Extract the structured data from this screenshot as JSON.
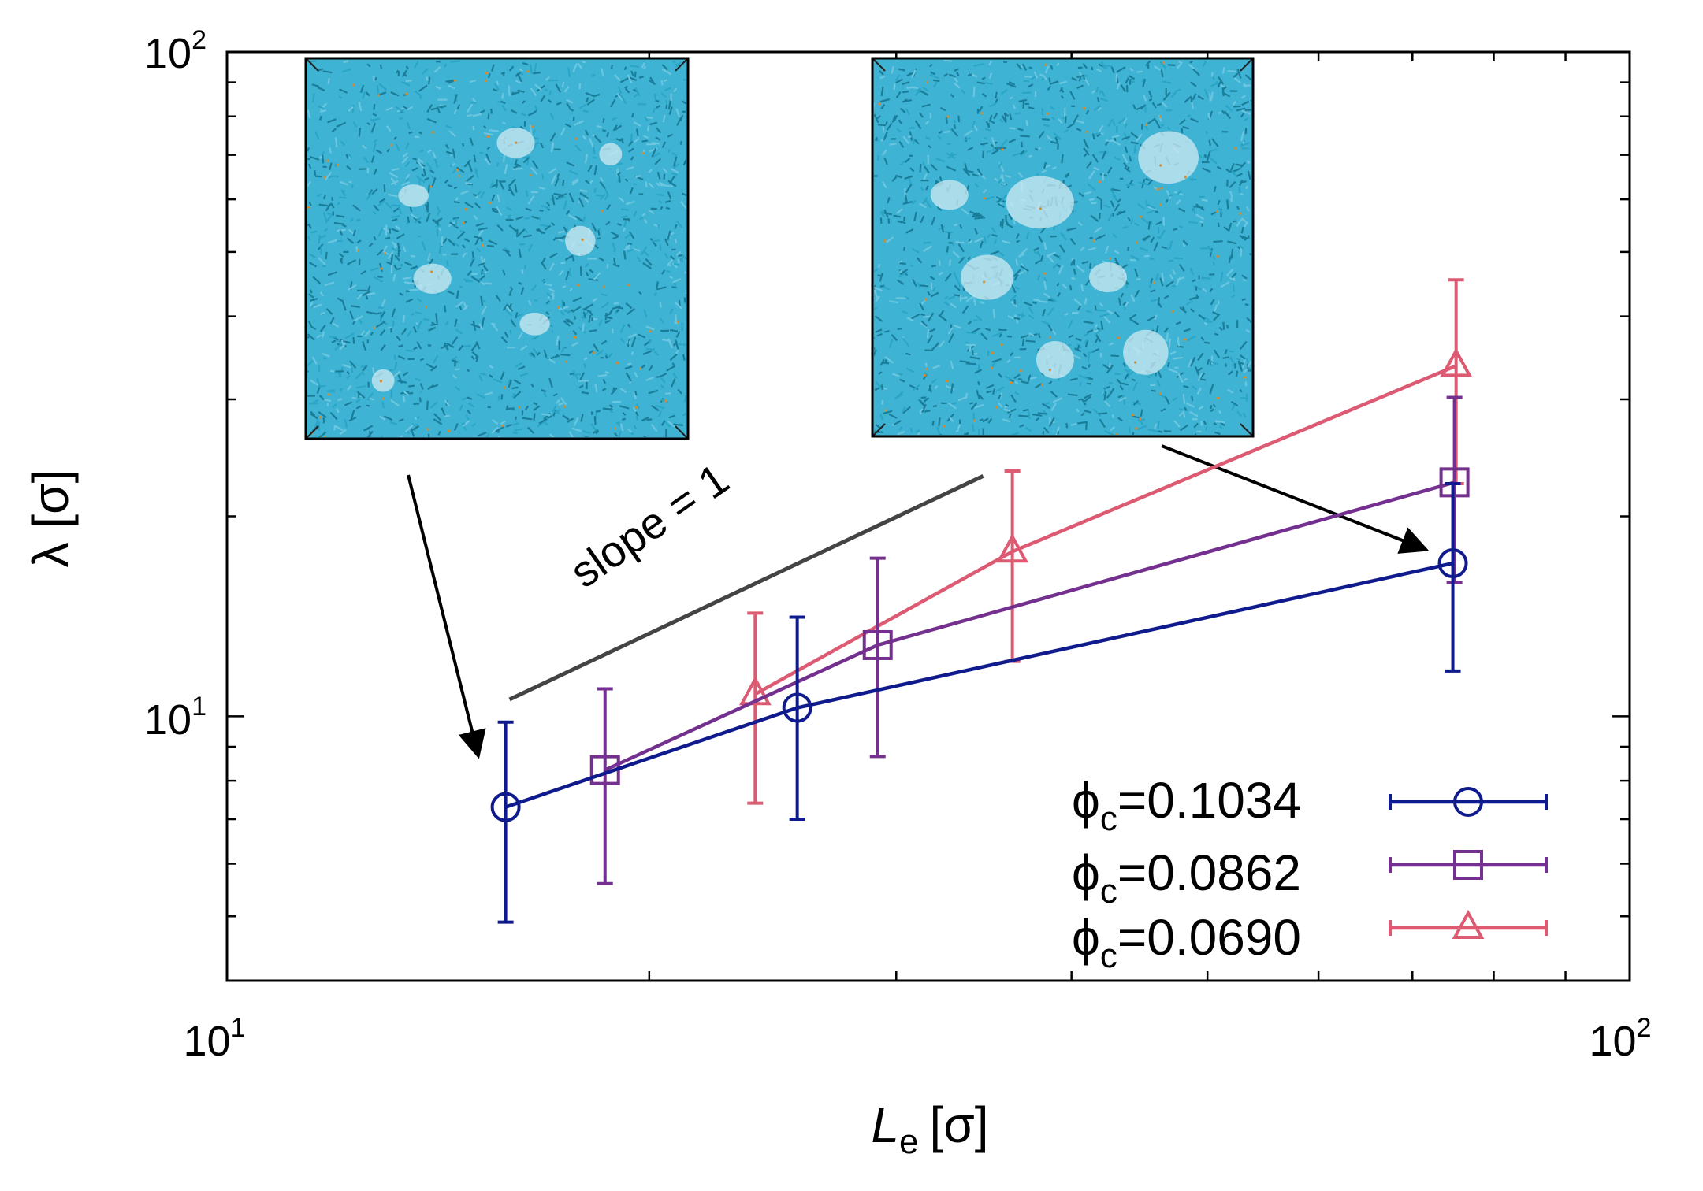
{
  "colors": {
    "axis": "#000000",
    "series_1034": "#0f1a8c",
    "series_0862": "#74308f",
    "series_0690": "#dc5a72",
    "guide_line": "#444444",
    "inset_fill": "#2aa5c6",
    "inset_dark": "#1a7d9a",
    "inset_pore": "#cfe9f1"
  },
  "chart_data": {
    "type": "line",
    "xscale": "log",
    "yscale": "log",
    "xlim": [
      10,
      100
    ],
    "ylim": [
      4,
      100
    ],
    "xlabel_main": "L",
    "xlabel_sub": "e",
    "xlabel_unit": "[σ]",
    "ylabel": "λ [σ]",
    "x_ticks": [
      {
        "base": "10",
        "exp": "1"
      },
      {
        "base": "10",
        "exp": "2"
      }
    ],
    "y_ticks": [
      {
        "base": "10",
        "exp": "1"
      },
      {
        "base": "10",
        "exp": "2"
      }
    ],
    "series": [
      {
        "name": "ϕc=0.1034",
        "label_phi": "ϕ",
        "label_sub": "c",
        "label_value": "=0.1034",
        "marker": "circle",
        "color_key": "series_1034",
        "x": [
          15.8,
          25.5,
          74.8
        ],
        "y": [
          7.3,
          10.3,
          17.0
        ],
        "yerr_low": [
          4.9,
          7.0,
          11.7
        ],
        "yerr_high": [
          9.8,
          14.1,
          22.4
        ]
      },
      {
        "name": "ϕc=0.0862",
        "label_phi": "ϕ",
        "label_sub": "c",
        "label_value": "=0.0862",
        "marker": "square",
        "color_key": "series_0862",
        "x": [
          18.6,
          29.1,
          75.0
        ],
        "y": [
          8.3,
          12.8,
          22.5
        ],
        "yerr_low": [
          5.6,
          8.7,
          15.9
        ],
        "yerr_high": [
          11.0,
          17.3,
          30.2
        ]
      },
      {
        "name": "ϕc=0.0690",
        "label_phi": "ϕ",
        "label_sub": "c",
        "label_value": "=0.0690",
        "marker": "triangle",
        "color_key": "series_0690",
        "x": [
          23.8,
          36.3,
          75.2
        ],
        "y": [
          10.8,
          17.7,
          33.7
        ],
        "yerr_low": [
          7.4,
          12.1,
          22.4
        ],
        "yerr_high": [
          14.3,
          23.4,
          45.4
        ]
      }
    ],
    "annotations": [
      {
        "text": "slope = 1",
        "type": "reference-line",
        "x": [
          15.9,
          34.6
        ],
        "y": [
          10.6,
          23.0
        ]
      }
    ],
    "insets": [
      {
        "label": "snapshot-low-le",
        "points_to_series": "ϕc=0.1034",
        "points_to_x": 15.8
      },
      {
        "label": "snapshot-high-le",
        "points_to_series": "ϕc=0.1034",
        "points_to_x": 74.8
      }
    ]
  }
}
